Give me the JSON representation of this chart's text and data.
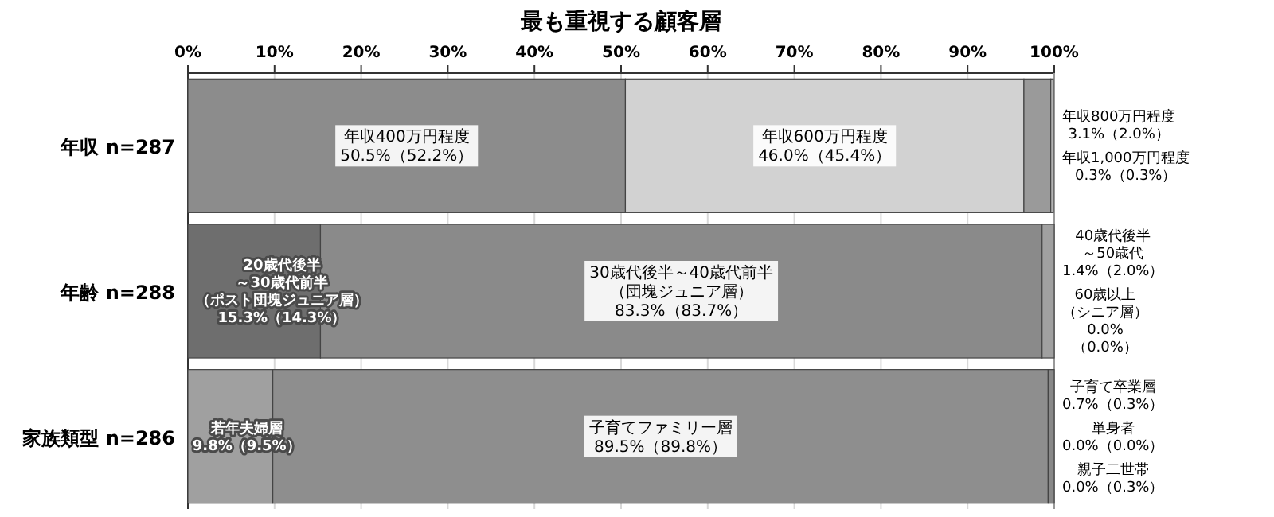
{
  "chart_data": {
    "type": "bar",
    "orientation": "horizontal",
    "stacked": true,
    "title": "最も重視する顧客層",
    "categories": [
      "年収 n=287",
      "年齢 n=288",
      "家族類型 n=286"
    ],
    "xlim": [
      0,
      100
    ],
    "xticks": [
      {
        "value": 0,
        "label": "0%"
      },
      {
        "value": 10,
        "label": "10%"
      },
      {
        "value": 20,
        "label": "20%"
      },
      {
        "value": 30,
        "label": "30%"
      },
      {
        "value": 40,
        "label": "40%"
      },
      {
        "value": 50,
        "label": "50%"
      },
      {
        "value": 60,
        "label": "60%"
      },
      {
        "value": 70,
        "label": "70%"
      },
      {
        "value": 80,
        "label": "80%"
      },
      {
        "value": 90,
        "label": "90%"
      },
      {
        "value": 100,
        "label": "100%"
      }
    ],
    "grid": "x",
    "series": [
      {
        "name": "年収400万円程度",
        "color": "#8c8c8c",
        "values": [
          50.5,
          null,
          null
        ],
        "value_labels": [
          "50.5%（52.2%）",
          null,
          null
        ]
      },
      {
        "name": "年収600万円程度",
        "color": "#d2d2d2",
        "values": [
          46.0,
          null,
          null
        ],
        "value_labels": [
          "46.0%（45.4%）",
          null,
          null
        ]
      },
      {
        "name": "年収800万円程度",
        "color": "#9a9a9a",
        "values": [
          3.1,
          null,
          null
        ],
        "value_labels": [
          "3.1%（2.0%）",
          null,
          null
        ]
      },
      {
        "name": "年収1,000万円程度",
        "color": "#b4b4b4",
        "values": [
          0.3,
          null,
          null
        ],
        "value_labels": [
          "0.3%（0.3%）",
          null,
          null
        ]
      },
      {
        "name": "20歳代後半～30歳代前半（ポスト団塊ジュニア層）",
        "color": "#6e6e6e",
        "values": [
          null,
          15.3,
          null
        ],
        "value_labels": [
          null,
          "15.3%（14.3%）",
          null
        ]
      },
      {
        "name": "30歳代後半～40歳代前半（団塊ジュニア層）",
        "color": "#8a8a8a",
        "values": [
          null,
          83.3,
          null
        ],
        "value_labels": [
          null,
          "83.3%（83.7%）",
          null
        ]
      },
      {
        "name": "40歳代後半～50歳代",
        "color": "#a0a0a0",
        "values": [
          null,
          1.4,
          null
        ],
        "value_labels": [
          null,
          "1.4%（2.0%）",
          null
        ]
      },
      {
        "name": "60歳以上（シニア層）",
        "values": [
          null,
          0.0,
          null
        ],
        "value_labels": [
          null,
          "0.0%\n（0.0%）",
          null
        ]
      },
      {
        "name": "若年夫婦層",
        "color": "#a0a0a0",
        "values": [
          null,
          null,
          9.8
        ],
        "value_labels": [
          null,
          null,
          "9.8%（9.5%）"
        ]
      },
      {
        "name": "子育てファミリー層",
        "color": "#8e8e8e",
        "values": [
          null,
          null,
          89.5
        ],
        "value_labels": [
          null,
          null,
          "89.5%（89.8%）"
        ]
      },
      {
        "name": "子育て卒業層",
        "color": "#888888",
        "values": [
          null,
          null,
          0.7
        ],
        "value_labels": [
          null,
          null,
          "0.7%（0.3%）"
        ]
      },
      {
        "name": "単身者",
        "values": [
          null,
          null,
          0.0
        ],
        "value_labels": [
          null,
          null,
          "0.0%（0.0%）"
        ]
      },
      {
        "name": "親子二世帯",
        "values": [
          null,
          null,
          0.0
        ],
        "value_labels": [
          null,
          null,
          "0.0%（0.3%）"
        ]
      }
    ]
  }
}
